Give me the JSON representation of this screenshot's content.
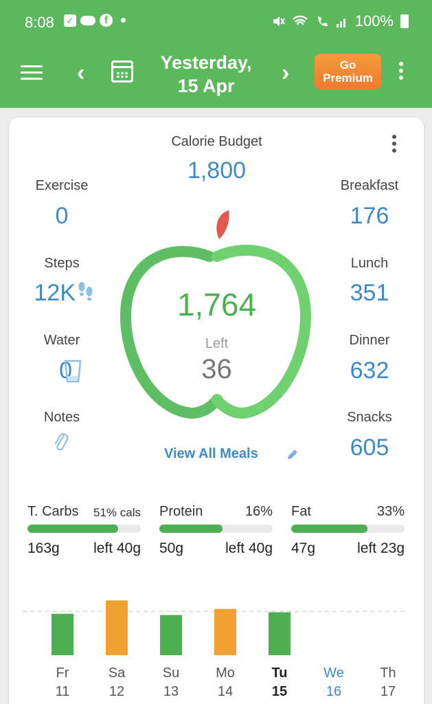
{
  "status_bar": {
    "time": "8:08",
    "battery": "100%",
    "icons": [
      "check-square-icon",
      "cloud-icon",
      "facebook-icon",
      "dot-icon",
      "mute-icon",
      "wifi-icon",
      "call-icon",
      "signal-icon",
      "battery-icon"
    ]
  },
  "app_bar": {
    "date_line1": "Yesterday,",
    "date_line2": "15 Apr",
    "premium_line1": "Go",
    "premium_line2": "Premium",
    "color": "#5cb85c"
  },
  "summary": {
    "calorie_budget_label": "Calorie Budget",
    "calorie_budget_value": "1,800",
    "consumed_value": "1,764",
    "left_label": "Left",
    "left_value": "36",
    "view_all_meals": "View All Meals",
    "left_column": [
      {
        "label": "Exercise",
        "value": "0"
      },
      {
        "label": "Steps",
        "value": "12K"
      },
      {
        "label": "Water",
        "value": "0"
      },
      {
        "label": "Notes",
        "value": ""
      }
    ],
    "right_column": [
      {
        "label": "Breakfast",
        "value": "176"
      },
      {
        "label": "Lunch",
        "value": "351"
      },
      {
        "label": "Dinner",
        "value": "632"
      },
      {
        "label": "Snacks",
        "value": "605"
      }
    ]
  },
  "macros": [
    {
      "name": "T. Carbs",
      "pct": "51% cals",
      "fill_fraction": 0.8,
      "grams": "163g",
      "left": "left 40g"
    },
    {
      "name": "Protein",
      "pct": "16%",
      "fill_fraction": 0.56,
      "grams": "50g",
      "left": "left 40g"
    },
    {
      "name": "Fat",
      "pct": "33%",
      "fill_fraction": 0.67,
      "grams": "47g",
      "left": "left 23g"
    }
  ],
  "chart_data": {
    "type": "bar",
    "categories": [
      "Fr 11",
      "Sa 12",
      "Su 13",
      "Mo 14",
      "Tu 15",
      "We 16",
      "Th 17"
    ],
    "days": [
      {
        "dow": "Fr",
        "date": "11",
        "value": 1700,
        "status": "under"
      },
      {
        "dow": "Sa",
        "date": "12",
        "value": 2250,
        "status": "over"
      },
      {
        "dow": "Su",
        "date": "13",
        "value": 1650,
        "status": "under"
      },
      {
        "dow": "Mo",
        "date": "14",
        "value": 1900,
        "status": "over"
      },
      {
        "dow": "Tu",
        "date": "15",
        "value": 1764,
        "status": "under"
      },
      {
        "dow": "We",
        "date": "16",
        "value": 0,
        "status": "none"
      },
      {
        "dow": "Th",
        "date": "17",
        "value": 0,
        "status": "none"
      }
    ],
    "budget_line": 1800,
    "ylim": [
      0,
      2400
    ],
    "colors": {
      "under": "#4caf50",
      "over": "#f0a030"
    }
  }
}
